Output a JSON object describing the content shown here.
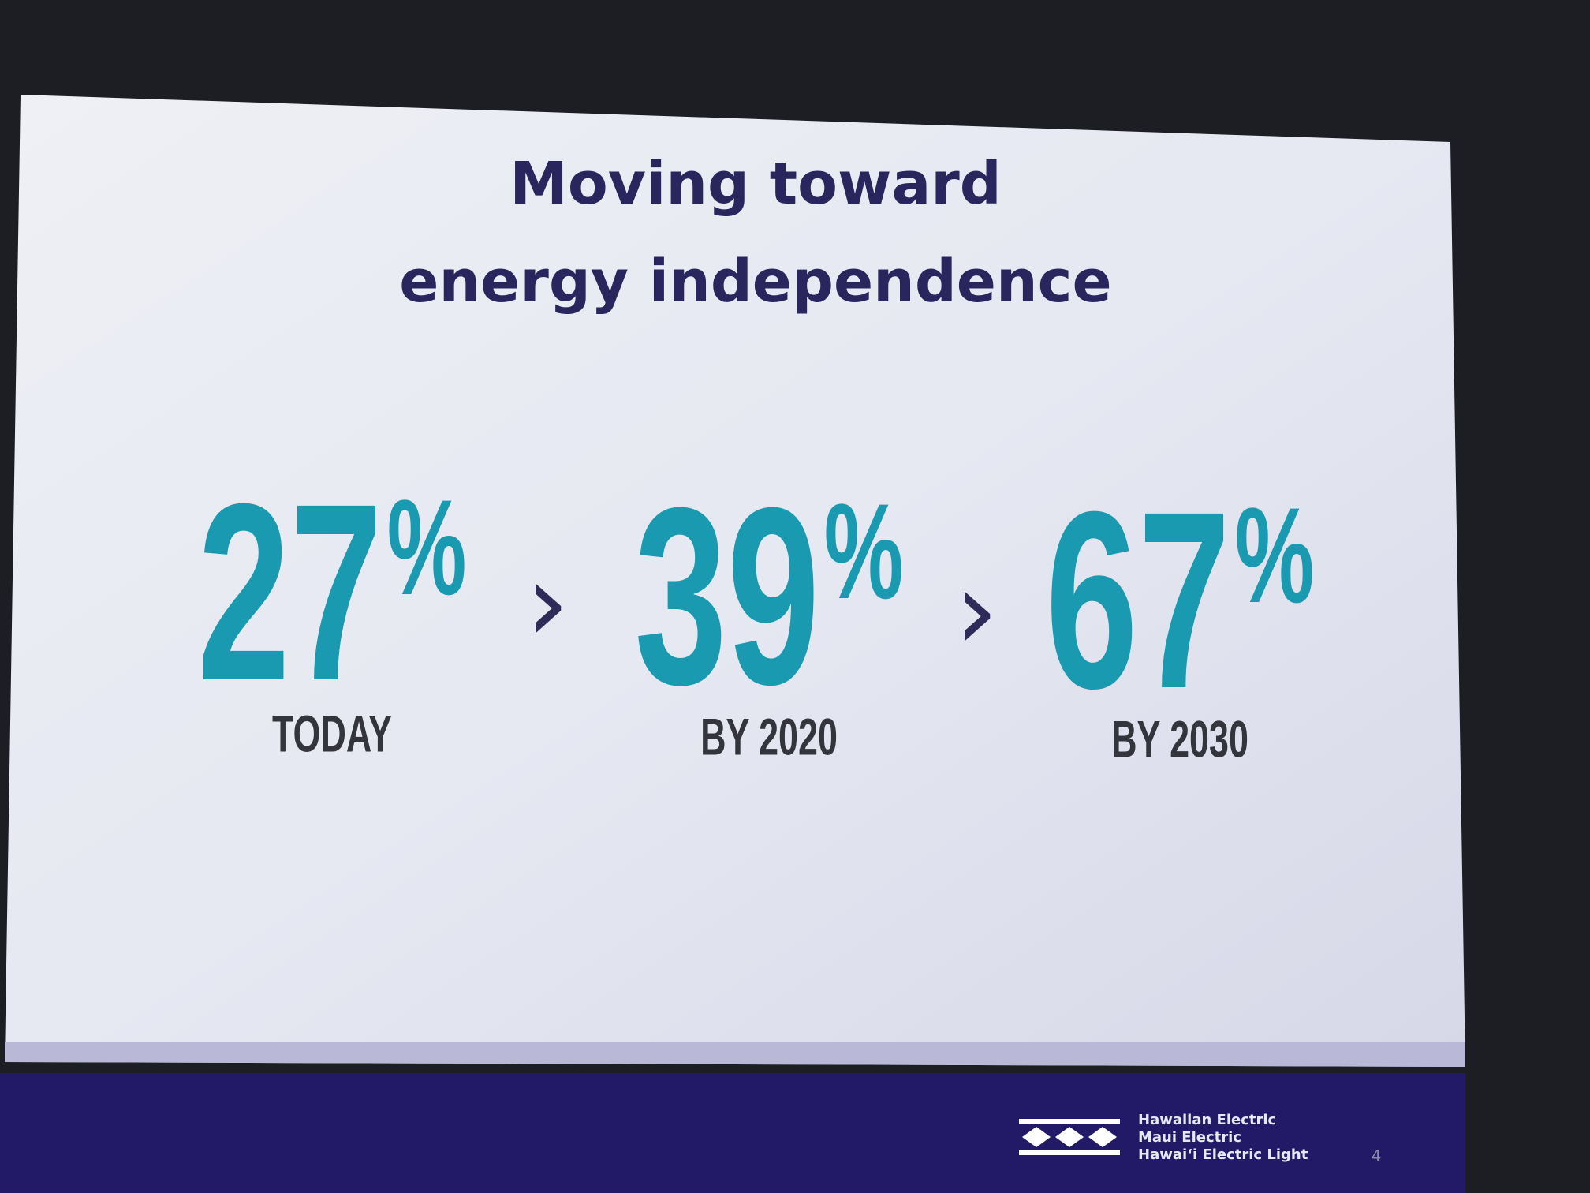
{
  "slide": {
    "title_lines": [
      "Moving toward",
      "energy independence"
    ],
    "stats": [
      {
        "number": "27",
        "unit": "%",
        "caption": "TODAY"
      },
      {
        "number": "39",
        "unit": "%",
        "caption": "BY 2020"
      },
      {
        "number": "67",
        "unit": "%",
        "caption": "BY 2030"
      }
    ],
    "separator": "›",
    "footer": {
      "companies": [
        "Hawaiian Electric",
        "Maui Electric",
        "Hawai‘i Electric Light"
      ],
      "page_number": "4"
    }
  }
}
